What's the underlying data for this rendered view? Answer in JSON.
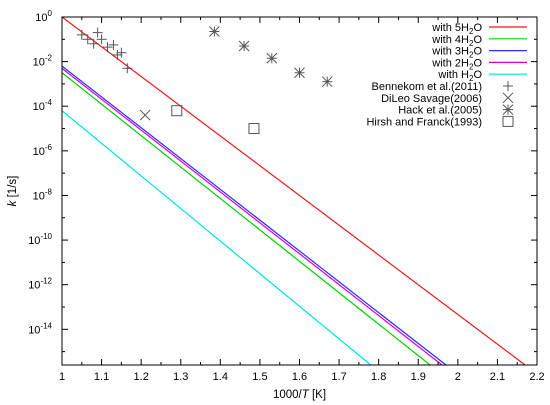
{
  "chart_data": {
    "type": "line",
    "xlabel_pre": "1000/",
    "xlabel_var": "T",
    "xlabel_post": " [K]",
    "ylabel_var": "k",
    "ylabel_post": " [1/s]",
    "xlim": [
      1.0,
      2.2
    ],
    "ylog": true,
    "ylim_exp": [
      -15.6,
      0
    ],
    "x_ticks": [
      "1",
      "1.1",
      "1.2",
      "1.3",
      "1.4",
      "1.5",
      "1.6",
      "1.7",
      "1.8",
      "1.9",
      "2",
      "2.1",
      "2.2"
    ],
    "y_tick_exponents": [
      "0",
      "-2",
      "-4",
      "-6",
      "-8",
      "-10",
      "-12",
      "-14"
    ],
    "y_tick_base": "10",
    "grid": false,
    "legend_position": "top-right",
    "series": [
      {
        "name_pre": "with 5H",
        "name_sub": "2",
        "name_post": "O",
        "color": "#e41a1c",
        "kind": "line",
        "x": [
          1.0,
          2.17
        ],
        "log10_y": [
          0.0,
          -15.6
        ]
      },
      {
        "name_pre": "with 4H",
        "name_sub": "2",
        "name_post": "O",
        "color": "#00d000",
        "kind": "line",
        "x": [
          1.0,
          1.93
        ],
        "log10_y": [
          -2.5,
          -15.6
        ]
      },
      {
        "name_pre": "with 3H",
        "name_sub": "2",
        "name_post": "O",
        "color": "#2b2bff",
        "kind": "line",
        "x": [
          1.0,
          1.97
        ],
        "log10_y": [
          -2.2,
          -15.6
        ]
      },
      {
        "name_pre": "with 2H",
        "name_sub": "2",
        "name_post": "O",
        "color": "#d400d4",
        "kind": "line",
        "x": [
          1.0,
          1.96
        ],
        "log10_y": [
          -2.3,
          -15.6
        ]
      },
      {
        "name_pre": "with H",
        "name_sub": "2",
        "name_post": "O",
        "color": "#00e0e0",
        "kind": "line",
        "x": [
          1.0,
          1.78
        ],
        "log10_y": [
          -4.2,
          -15.6
        ]
      },
      {
        "name_pre": "Bennekom et al.(2011)",
        "name_sub": "",
        "name_post": "",
        "color": "#555555",
        "kind": "plus",
        "x": [
          1.05,
          1.065,
          1.08,
          1.09,
          1.1,
          1.115,
          1.13,
          1.14,
          1.15,
          1.165
        ],
        "log10_y": [
          -0.8,
          -1.0,
          -1.2,
          -0.7,
          -1.0,
          -1.35,
          -1.25,
          -1.7,
          -1.6,
          -2.3
        ]
      },
      {
        "name_pre": "DiLeo Savage(2006)",
        "name_sub": "",
        "name_post": "",
        "color": "#555555",
        "kind": "cross",
        "x": [
          1.21
        ],
        "log10_y": [
          -4.4
        ]
      },
      {
        "name_pre": "Hack et al.(2005)",
        "name_sub": "",
        "name_post": "",
        "color": "#555555",
        "kind": "star",
        "x": [
          1.385,
          1.46,
          1.53,
          1.6,
          1.67
        ],
        "log10_y": [
          -0.65,
          -1.3,
          -1.85,
          -2.5,
          -2.9
        ]
      },
      {
        "name_pre": "Hirsh and Franck(1993)",
        "name_sub": "",
        "name_post": "",
        "color": "#555555",
        "kind": "square",
        "x": [
          1.29,
          1.485
        ],
        "log10_y": [
          -4.2,
          -5.0
        ]
      }
    ]
  }
}
